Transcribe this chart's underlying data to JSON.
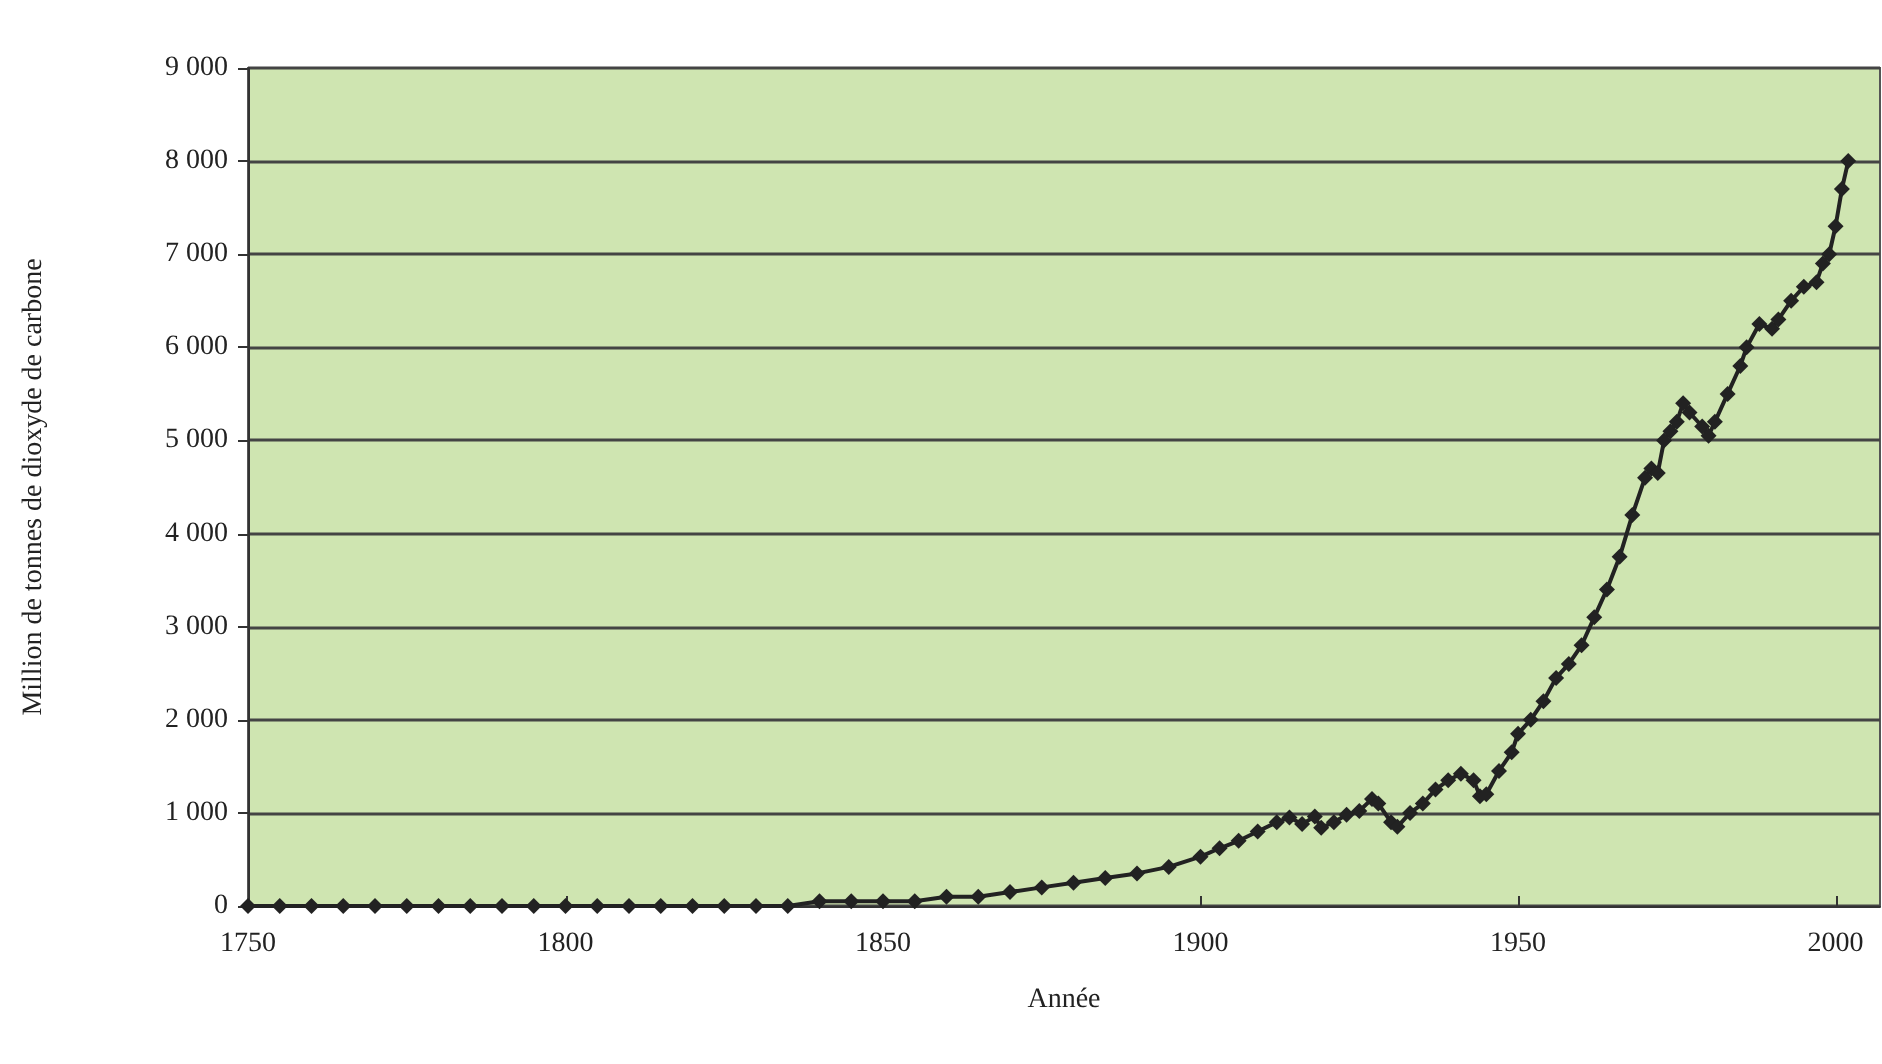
{
  "chart_data": {
    "type": "line",
    "xlabel": "Année",
    "ylabel": "Million de tonnes de dioxyde de carbone",
    "x": [
      1750,
      1755,
      1760,
      1765,
      1770,
      1775,
      1780,
      1785,
      1790,
      1795,
      1800,
      1805,
      1810,
      1815,
      1820,
      1825,
      1830,
      1835,
      1840,
      1845,
      1850,
      1855,
      1860,
      1865,
      1870,
      1875,
      1880,
      1885,
      1890,
      1895,
      1900,
      1903,
      1906,
      1909,
      1912,
      1914,
      1916,
      1918,
      1919,
      1921,
      1923,
      1925,
      1927,
      1928,
      1930,
      1931,
      1933,
      1935,
      1937,
      1939,
      1941,
      1943,
      1944,
      1945,
      1947,
      1949,
      1950,
      1952,
      1954,
      1956,
      1958,
      1960,
      1962,
      1964,
      1966,
      1968,
      1970,
      1971,
      1972,
      1973,
      1974,
      1975,
      1976,
      1977,
      1979,
      1980,
      1981,
      1983,
      1985,
      1986,
      1988,
      1990,
      1991,
      1993,
      1995,
      1997,
      1998,
      1999,
      2000,
      2001,
      2002
    ],
    "series": [
      {
        "color": "#222222",
        "values": [
          0,
          0,
          0,
          0,
          0,
          0,
          0,
          0,
          0,
          0,
          0,
          0,
          0,
          0,
          0,
          0,
          0,
          0,
          50,
          50,
          50,
          50,
          100,
          100,
          150,
          200,
          250,
          300,
          350,
          420,
          530,
          620,
          700,
          800,
          900,
          950,
          880,
          960,
          840,
          900,
          980,
          1020,
          1150,
          1100,
          900,
          850,
          1000,
          1100,
          1250,
          1350,
          1420,
          1350,
          1180,
          1200,
          1450,
          1650,
          1850,
          2000,
          2200,
          2450,
          2600,
          2800,
          3100,
          3400,
          3750,
          4200,
          4600,
          4700,
          4650,
          5000,
          5100,
          5200,
          5400,
          5300,
          5150,
          5050,
          5200,
          5500,
          5800,
          6000,
          6250,
          6200,
          6300,
          6500,
          6650,
          6700,
          6900,
          7000,
          7300,
          7700,
          8000
        ]
      }
    ],
    "xlim": [
      1750,
      2007
    ],
    "xticks": [
      1750,
      1800,
      1850,
      1900,
      1950,
      2000
    ],
    "ylim": [
      0,
      9000
    ],
    "yticks": [
      0,
      {
        "value": 1000,
        "label": "1 000"
      },
      {
        "value": 2000,
        "label": "2 000"
      },
      {
        "value": 3000,
        "label": "3 000"
      },
      {
        "value": 4000,
        "label": "4 000"
      },
      {
        "value": 5000,
        "label": "5 000"
      },
      {
        "value": 6000,
        "label": "6 000"
      },
      {
        "value": 7000,
        "label": "7 000"
      },
      {
        "value": 8000,
        "label": "8 000"
      },
      {
        "value": 9000,
        "label": "9 000"
      }
    ],
    "grid": "y",
    "marker": "diamond",
    "line_style": "solid"
  }
}
